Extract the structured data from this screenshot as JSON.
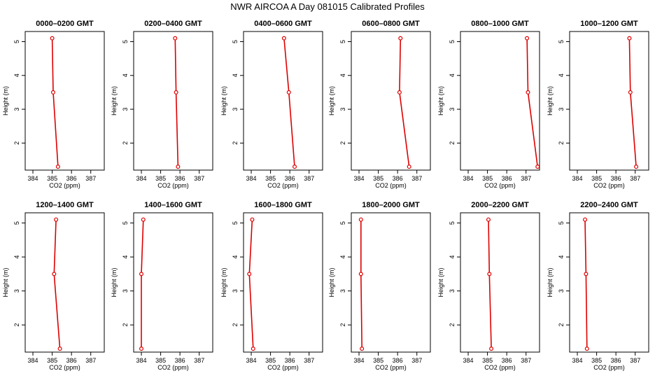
{
  "figure_title": "NWR AIRCOA A  Day 081015  Calibrated Profiles",
  "colors": {
    "series": "#dd0000",
    "axes": "#000000",
    "background": "#ffffff"
  },
  "chart_data": [
    {
      "type": "line",
      "title": "0000–0200 GMT",
      "xlabel": "CO2 (ppm)",
      "ylabel": "Height (m)",
      "xlim": [
        383.6,
        387.7
      ],
      "ylim": [
        1.2,
        5.3
      ],
      "xticks": [
        384,
        385,
        386,
        387
      ],
      "yticks": [
        2,
        3,
        4,
        5
      ],
      "series": [
        {
          "points": [
            {
              "x": 385.0,
              "y": 5.1
            },
            {
              "x": 385.05,
              "y": 3.5
            },
            {
              "x": 385.3,
              "y": 1.3
            }
          ]
        }
      ]
    },
    {
      "type": "line",
      "title": "0200–0400 GMT",
      "xlabel": "CO2 (ppm)",
      "ylabel": "Height (m)",
      "xlim": [
        383.6,
        387.7
      ],
      "ylim": [
        1.2,
        5.3
      ],
      "xticks": [
        384,
        385,
        386,
        387
      ],
      "yticks": [
        2,
        3,
        4,
        5
      ],
      "series": [
        {
          "points": [
            {
              "x": 385.75,
              "y": 5.1
            },
            {
              "x": 385.8,
              "y": 3.5
            },
            {
              "x": 385.9,
              "y": 1.3
            }
          ]
        }
      ]
    },
    {
      "type": "line",
      "title": "0400–0600 GMT",
      "xlabel": "CO2 (ppm)",
      "ylabel": "Height (m)",
      "xlim": [
        383.6,
        387.7
      ],
      "ylim": [
        1.2,
        5.3
      ],
      "xticks": [
        384,
        385,
        386,
        387
      ],
      "yticks": [
        2,
        3,
        4,
        5
      ],
      "series": [
        {
          "points": [
            {
              "x": 385.7,
              "y": 5.1
            },
            {
              "x": 385.95,
              "y": 3.5
            },
            {
              "x": 386.25,
              "y": 1.3
            }
          ]
        }
      ]
    },
    {
      "type": "line",
      "title": "0600–0800 GMT",
      "xlabel": "CO2 (ppm)",
      "ylabel": "Height (m)",
      "xlim": [
        383.6,
        387.7
      ],
      "ylim": [
        1.2,
        5.3
      ],
      "xticks": [
        384,
        385,
        386,
        387
      ],
      "yticks": [
        2,
        3,
        4,
        5
      ],
      "series": [
        {
          "points": [
            {
              "x": 386.15,
              "y": 5.1
            },
            {
              "x": 386.1,
              "y": 3.5
            },
            {
              "x": 386.6,
              "y": 1.3
            }
          ]
        }
      ]
    },
    {
      "type": "line",
      "title": "0800–1000 GMT",
      "xlabel": "CO2 (ppm)",
      "ylabel": "Height (m)",
      "xlim": [
        383.6,
        387.7
      ],
      "ylim": [
        1.2,
        5.3
      ],
      "xticks": [
        384,
        385,
        386,
        387
      ],
      "yticks": [
        2,
        3,
        4,
        5
      ],
      "series": [
        {
          "points": [
            {
              "x": 387.05,
              "y": 5.1
            },
            {
              "x": 387.1,
              "y": 3.5
            },
            {
              "x": 387.6,
              "y": 1.3
            }
          ]
        }
      ]
    },
    {
      "type": "line",
      "title": "1000–1200 GMT",
      "xlabel": "CO2 (ppm)",
      "ylabel": "Height (m)",
      "xlim": [
        383.6,
        387.7
      ],
      "ylim": [
        1.2,
        5.3
      ],
      "xticks": [
        384,
        385,
        386,
        387
      ],
      "yticks": [
        2,
        3,
        4,
        5
      ],
      "series": [
        {
          "points": [
            {
              "x": 386.7,
              "y": 5.1
            },
            {
              "x": 386.75,
              "y": 3.5
            },
            {
              "x": 387.05,
              "y": 1.3
            }
          ]
        }
      ]
    },
    {
      "type": "line",
      "title": "1200–1400 GMT",
      "xlabel": "CO2 (ppm)",
      "ylabel": "Height (m)",
      "xlim": [
        383.6,
        387.7
      ],
      "ylim": [
        1.2,
        5.3
      ],
      "xticks": [
        384,
        385,
        386,
        387
      ],
      "yticks": [
        2,
        3,
        4,
        5
      ],
      "series": [
        {
          "points": [
            {
              "x": 385.2,
              "y": 5.1
            },
            {
              "x": 385.1,
              "y": 3.5
            },
            {
              "x": 385.4,
              "y": 1.3
            }
          ]
        }
      ]
    },
    {
      "type": "line",
      "title": "1400–1600 GMT",
      "xlabel": "CO2 (ppm)",
      "ylabel": "Height (m)",
      "xlim": [
        383.6,
        387.7
      ],
      "ylim": [
        1.2,
        5.3
      ],
      "xticks": [
        384,
        385,
        386,
        387
      ],
      "yticks": [
        2,
        3,
        4,
        5
      ],
      "series": [
        {
          "points": [
            {
              "x": 384.1,
              "y": 5.1
            },
            {
              "x": 384.0,
              "y": 3.5
            },
            {
              "x": 384.0,
              "y": 1.3
            }
          ]
        }
      ]
    },
    {
      "type": "line",
      "title": "1600–1800 GMT",
      "xlabel": "CO2 (ppm)",
      "ylabel": "Height (m)",
      "xlim": [
        383.6,
        387.7
      ],
      "ylim": [
        1.2,
        5.3
      ],
      "xticks": [
        384,
        385,
        386,
        387
      ],
      "yticks": [
        2,
        3,
        4,
        5
      ],
      "series": [
        {
          "points": [
            {
              "x": 384.05,
              "y": 5.1
            },
            {
              "x": 383.9,
              "y": 3.5
            },
            {
              "x": 384.1,
              "y": 1.3
            }
          ]
        }
      ]
    },
    {
      "type": "line",
      "title": "1800–2000 GMT",
      "xlabel": "CO2 (ppm)",
      "ylabel": "Height (m)",
      "xlim": [
        383.6,
        387.7
      ],
      "ylim": [
        1.2,
        5.3
      ],
      "xticks": [
        384,
        385,
        386,
        387
      ],
      "yticks": [
        2,
        3,
        4,
        5
      ],
      "series": [
        {
          "points": [
            {
              "x": 384.1,
              "y": 5.1
            },
            {
              "x": 384.1,
              "y": 3.5
            },
            {
              "x": 384.15,
              "y": 1.3
            }
          ]
        }
      ]
    },
    {
      "type": "line",
      "title": "2000–2200 GMT",
      "xlabel": "CO2 (ppm)",
      "ylabel": "Height (m)",
      "xlim": [
        383.6,
        387.7
      ],
      "ylim": [
        1.2,
        5.3
      ],
      "xticks": [
        384,
        385,
        386,
        387
      ],
      "yticks": [
        2,
        3,
        4,
        5
      ],
      "series": [
        {
          "points": [
            {
              "x": 385.05,
              "y": 5.1
            },
            {
              "x": 385.1,
              "y": 3.5
            },
            {
              "x": 385.2,
              "y": 1.3
            }
          ]
        }
      ]
    },
    {
      "type": "line",
      "title": "2200–2400 GMT",
      "xlabel": "CO2 (ppm)",
      "ylabel": "Height (m)",
      "xlim": [
        383.6,
        387.7
      ],
      "ylim": [
        1.2,
        5.3
      ],
      "xticks": [
        384,
        385,
        386,
        387
      ],
      "yticks": [
        2,
        3,
        4,
        5
      ],
      "series": [
        {
          "points": [
            {
              "x": 384.4,
              "y": 5.1
            },
            {
              "x": 384.45,
              "y": 3.5
            },
            {
              "x": 384.5,
              "y": 1.3
            }
          ]
        }
      ]
    }
  ]
}
